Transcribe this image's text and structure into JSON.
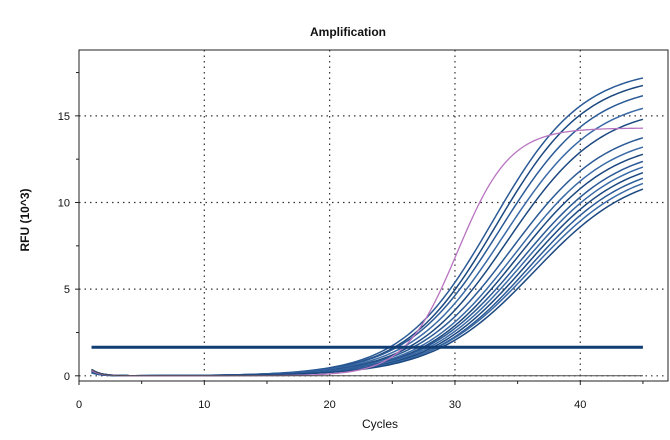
{
  "chart_data": {
    "type": "line",
    "title": "Amplification",
    "xlabel": "Cycles",
    "ylabel": "RFU (10^3)",
    "xlim": [
      0,
      47
    ],
    "ylim": [
      -0.3,
      18.8
    ],
    "x_ticks": [
      0,
      10,
      20,
      30,
      40
    ],
    "y_ticks": [
      0,
      5,
      10,
      15
    ],
    "grid": true,
    "legend": "none",
    "threshold": 1.65,
    "x_start": 1,
    "x_end": 45,
    "colors": {
      "samples": "#2b5a96",
      "control": "#b874c0",
      "threshold": "#0f3d74",
      "baseline": "#4a4a4a"
    },
    "series": [
      {
        "plateau": 17.8,
        "ct": 33.0,
        "slope": 3.6,
        "color": "#2b5a96"
      },
      {
        "plateau": 17.4,
        "ct": 33.3,
        "slope": 3.6,
        "color": "#1c4880"
      },
      {
        "plateau": 16.9,
        "ct": 33.6,
        "slope": 3.7,
        "color": "#2b5a96"
      },
      {
        "plateau": 16.2,
        "ct": 33.9,
        "slope": 3.7,
        "color": "#3a6aa6"
      },
      {
        "plateau": 15.6,
        "ct": 34.2,
        "slope": 3.7,
        "color": "#1c4880"
      },
      {
        "plateau": 14.6,
        "ct": 34.5,
        "slope": 3.8,
        "color": "#2b5a96"
      },
      {
        "plateau": 14.1,
        "ct": 34.8,
        "slope": 3.8,
        "color": "#3a6aa6"
      },
      {
        "plateau": 13.7,
        "ct": 35.0,
        "slope": 3.8,
        "color": "#1c4880"
      },
      {
        "plateau": 13.4,
        "ct": 35.3,
        "slope": 3.9,
        "color": "#2b5a96"
      },
      {
        "plateau": 13.1,
        "ct": 35.5,
        "slope": 3.9,
        "color": "#3a6aa6"
      },
      {
        "plateau": 12.8,
        "ct": 35.7,
        "slope": 3.9,
        "color": "#1c4880"
      },
      {
        "plateau": 12.5,
        "ct": 35.9,
        "slope": 3.9,
        "color": "#2b5a96"
      },
      {
        "plateau": 12.3,
        "ct": 36.1,
        "slope": 4.0,
        "color": "#3a6aa6"
      },
      {
        "plateau": 12.0,
        "ct": 36.3,
        "slope": 4.0,
        "color": "#1c4880"
      },
      {
        "plateau": 14.3,
        "ct": 30.2,
        "slope": 2.1,
        "color": "#b874c0"
      },
      {
        "plateau": 0.0,
        "ct": 60,
        "slope": 3,
        "color": "#4a4a4a"
      }
    ]
  }
}
